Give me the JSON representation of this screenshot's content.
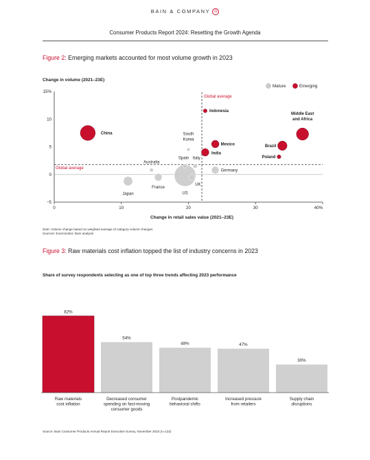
{
  "header": {
    "brand": "BAIN & COMPANY",
    "brand_mark": "⊙",
    "report_title": "Consumer Products Report 2024: Resetting the Growth Agenda"
  },
  "figure2": {
    "title_lead": "Figure 2:",
    "title_text": " Emerging markets accounted for most volume growth in 2023",
    "y_title": "Change in volume (2021–23E)",
    "x_title": "Change in retail sales value (2021–23E)",
    "legend": [
      {
        "label": "Mature",
        "color": "#cccccc"
      },
      {
        "label": "Emerging",
        "color": "#c8102e"
      }
    ],
    "global_avg_x_label": "Global average",
    "global_avg_y_label": "Global average",
    "note_line1": "Note: Volume change based on weighted average of category volume changes",
    "note_line2": "Sources: Euromonitor; Bain analysis"
  },
  "figure3": {
    "title_lead": "Figure 3:",
    "title_text": " Raw materials cost inflation topped the list of industry concerns in 2023",
    "subtitle": "Share of survey respondents selecting as one of top three trends affecting 2023 performance",
    "source": "Source: Bain Consumer Products Annual Report Executive Survey, November 2023 (n=122)"
  },
  "colors": {
    "accent_red": "#c8102e",
    "mature_gray": "#cccccc"
  },
  "chart_data": [
    {
      "type": "scatter",
      "xlabel": "Change in retail sales value (2021–23E)",
      "ylabel": "Change in volume (2021–23E)",
      "xlim": [
        0,
        40
      ],
      "ylim": [
        -5,
        15
      ],
      "x_ticks": [
        "0",
        "10",
        "20",
        "30",
        "40%"
      ],
      "y_ticks": [
        "15%",
        "10",
        "5",
        "0",
        "−5"
      ],
      "global_average": {
        "x": 22,
        "y": 1.8
      },
      "legend_position": "top-right",
      "grid": false,
      "points": [
        {
          "label": "China",
          "x": 5,
          "y": 7.5,
          "group": "Emerging",
          "size": 3.2
        },
        {
          "label": "Indonesia",
          "x": 22.5,
          "y": 11.5,
          "group": "Emerging",
          "size": 0.8
        },
        {
          "label": "Mexico",
          "x": 24,
          "y": 5.5,
          "group": "Emerging",
          "size": 1.6
        },
        {
          "label": "India",
          "x": 22.5,
          "y": 4,
          "group": "Emerging",
          "size": 1.6
        },
        {
          "label": "Brazil",
          "x": 34,
          "y": 5.2,
          "group": "Emerging",
          "size": 2.0
        },
        {
          "label": "Poland",
          "x": 33.5,
          "y": 3.2,
          "group": "Emerging",
          "size": 0.8
        },
        {
          "label": "Middle East and Africa",
          "x": 37,
          "y": 7.3,
          "group": "Emerging",
          "size": 2.6
        },
        {
          "label": "South Korea",
          "x": 20,
          "y": 4.5,
          "group": "Mature",
          "size": 0.7
        },
        {
          "label": "Australia",
          "x": 14.5,
          "y": 0.8,
          "group": "Mature",
          "size": 0.8
        },
        {
          "label": "Spain",
          "x": 19.5,
          "y": 1.5,
          "group": "Mature",
          "size": 0.9
        },
        {
          "label": "Italy",
          "x": 21,
          "y": 1.5,
          "group": "Mature",
          "size": 0.9
        },
        {
          "label": "Japan",
          "x": 11,
          "y": -1.2,
          "group": "Mature",
          "size": 2.0
        },
        {
          "label": "France",
          "x": 15.5,
          "y": -0.5,
          "group": "Mature",
          "size": 1.6
        },
        {
          "label": "US",
          "x": 19.5,
          "y": -0.2,
          "group": "Mature",
          "size": 4.6
        },
        {
          "label": "UK",
          "x": 20.5,
          "y": -0.5,
          "group": "Mature",
          "size": 1.3
        },
        {
          "label": "Germany",
          "x": 24,
          "y": 0.8,
          "group": "Mature",
          "size": 1.6
        }
      ]
    },
    {
      "type": "bar",
      "title": "Share of survey respondents selecting as one of top three trends affecting 2023 performance",
      "categories": [
        "Raw materials cost inflation",
        "Decreased consumer spending on fast-moving consumer goods",
        "Postpandemic behavioral shifts",
        "Increased pressure from retailers",
        "Supply chain disruptions"
      ],
      "category_lines": [
        [
          "Raw materials",
          "cost inflation"
        ],
        [
          "Decreased consumer",
          "spending on fast-moving",
          "consumer goods"
        ],
        [
          "Postpandemic",
          "behavioral shifts"
        ],
        [
          "Increased pressure",
          "from retailers"
        ],
        [
          "Supply chain",
          "disruptions"
        ]
      ],
      "values": [
        82,
        54,
        48,
        47,
        30
      ],
      "value_labels": [
        "82%",
        "54%",
        "48%",
        "47%",
        "30%"
      ],
      "highlight_index": 0,
      "ylim": [
        0,
        100
      ]
    }
  ]
}
